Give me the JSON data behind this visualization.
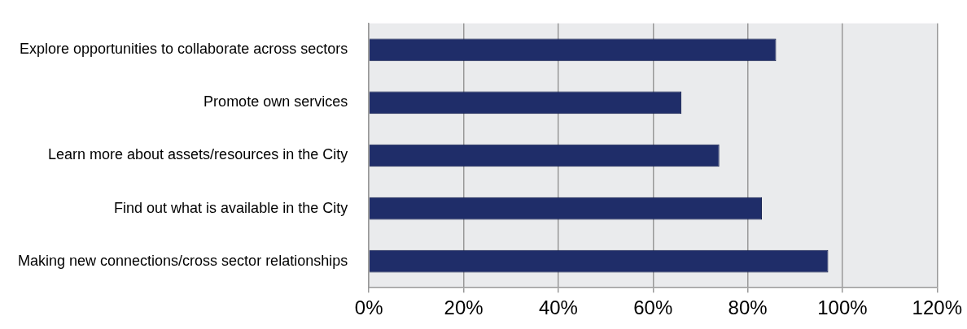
{
  "chart_data": {
    "type": "bar",
    "orientation": "horizontal",
    "categories": [
      "Explore opportunities to collaborate across sectors",
      "Promote own services",
      "Learn more about assets/resources in the City",
      "Find out what is available in the City",
      "Making new connections/cross sector relationships"
    ],
    "values": [
      86,
      66,
      74,
      83,
      97
    ],
    "color": "#1f2d69",
    "xlim": [
      0,
      120
    ],
    "xticks": [
      {
        "value": 0,
        "label": "0%"
      },
      {
        "value": 20,
        "label": "20%"
      },
      {
        "value": 40,
        "label": "40%"
      },
      {
        "value": 60,
        "label": "60%"
      },
      {
        "value": 80,
        "label": "80%"
      },
      {
        "value": 100,
        "label": "100%"
      },
      {
        "value": 120,
        "label": "120%"
      }
    ],
    "grid": "x",
    "legend": false
  }
}
